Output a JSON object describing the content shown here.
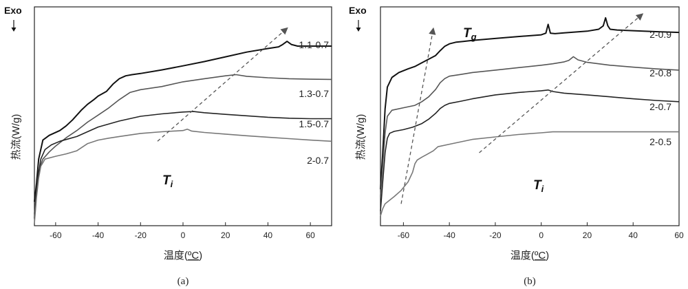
{
  "chart_data": [
    {
      "type": "line",
      "panel": "(a)",
      "exo_label": "Exo",
      "ylabel": "热流(W/g)",
      "xlabel_main": "温度(",
      "xlabel_unit": "ºC",
      "xlabel_close": ")",
      "xlim": [
        -70,
        70
      ],
      "xticks": [
        -60,
        -40,
        -20,
        0,
        20,
        40,
        60
      ],
      "series": [
        {
          "name": "1.1-0.7",
          "color": "#111111",
          "x": [
            -70,
            -69,
            -68,
            -66,
            -63,
            -58,
            -55,
            -52,
            -50,
            -48,
            -45,
            -42,
            -40,
            -36,
            -33,
            -30,
            -27,
            -24,
            -20,
            -10,
            0,
            10,
            20,
            30,
            40,
            45,
            47,
            49,
            51,
            54,
            58,
            62,
            70
          ],
          "y": [
            1.0,
            1.8,
            2.8,
            3.6,
            3.8,
            4.0,
            4.2,
            4.45,
            4.65,
            4.85,
            5.1,
            5.3,
            5.45,
            5.65,
            5.95,
            6.18,
            6.3,
            6.35,
            6.4,
            6.55,
            6.72,
            6.9,
            7.1,
            7.3,
            7.45,
            7.52,
            7.62,
            7.75,
            7.62,
            7.55,
            7.55,
            7.55,
            7.55
          ]
        },
        {
          "name": "1.3-0.7",
          "color": "#555555",
          "x": [
            -70,
            -69,
            -68,
            -66,
            -63,
            -60,
            -55,
            -50,
            -45,
            -40,
            -35,
            -30,
            -25,
            -20,
            -10,
            0,
            10,
            20,
            25,
            30,
            40,
            50,
            60,
            70
          ],
          "y": [
            0.5,
            1.5,
            2.3,
            2.8,
            3.1,
            3.35,
            3.7,
            4.0,
            4.35,
            4.65,
            4.95,
            5.3,
            5.6,
            5.72,
            5.85,
            6.05,
            6.18,
            6.3,
            6.35,
            6.28,
            6.22,
            6.18,
            6.16,
            6.15
          ]
        },
        {
          "name": "1.5-0.7",
          "color": "#222222",
          "x": [
            -70,
            -69,
            -68,
            -67,
            -65,
            -62,
            -58,
            -54,
            -50,
            -45,
            -40,
            -30,
            -20,
            -10,
            0,
            5,
            10,
            20,
            30,
            40,
            50,
            60,
            70
          ],
          "y": [
            0.3,
            1.4,
            2.2,
            2.8,
            3.2,
            3.4,
            3.55,
            3.65,
            3.75,
            3.95,
            4.15,
            4.4,
            4.6,
            4.7,
            4.78,
            4.8,
            4.75,
            4.68,
            4.62,
            4.56,
            4.52,
            4.5,
            4.5
          ]
        },
        {
          "name": "2-0.7",
          "color": "#777777",
          "x": [
            -70,
            -69,
            -68,
            -67,
            -65,
            -60,
            -55,
            -50,
            -45,
            -40,
            -35,
            -30,
            -20,
            -10,
            0,
            2,
            4,
            10,
            20,
            30,
            40,
            50,
            60,
            70
          ],
          "y": [
            0.1,
            1.2,
            2.0,
            2.5,
            2.8,
            2.92,
            3.02,
            3.15,
            3.45,
            3.6,
            3.68,
            3.75,
            3.88,
            3.95,
            4.0,
            4.06,
            3.98,
            3.92,
            3.85,
            3.78,
            3.72,
            3.66,
            3.6,
            3.55
          ]
        }
      ],
      "annotations": [
        {
          "symbol": "T",
          "subscript": "i",
          "from": [
            -12,
            3.55
          ],
          "to": [
            49,
            8.3
          ]
        }
      ]
    },
    {
      "type": "line",
      "panel": "(b)",
      "exo_label": "Exo",
      "ylabel": "热流(W/g)",
      "xlabel_main": "温度(",
      "xlabel_unit": "ºC",
      "xlabel_close": ")",
      "xlim": [
        -70,
        60
      ],
      "xticks": [
        -60,
        -40,
        -20,
        0,
        20,
        40,
        60
      ],
      "series": [
        {
          "name": "2-0.9",
          "color": "#111111",
          "x": [
            -70,
            -69,
            -68,
            -67,
            -65,
            -62,
            -58,
            -55,
            -52,
            -49,
            -46,
            -44,
            -42,
            -40,
            -37,
            -34,
            -30,
            -20,
            -10,
            0,
            2,
            3,
            4,
            6,
            10,
            20,
            25,
            27,
            28,
            29,
            30,
            33,
            40,
            50,
            60
          ],
          "y": [
            1.5,
            3.0,
            4.8,
            5.7,
            6.1,
            6.3,
            6.45,
            6.55,
            6.7,
            6.85,
            7.0,
            7.2,
            7.38,
            7.48,
            7.55,
            7.58,
            7.62,
            7.7,
            7.78,
            7.85,
            7.92,
            8.28,
            7.92,
            7.9,
            7.93,
            8.0,
            8.08,
            8.22,
            8.55,
            8.22,
            8.08,
            8.05,
            8.02,
            7.98,
            7.95
          ]
        },
        {
          "name": "2-0.8",
          "color": "#555555",
          "x": [
            -70,
            -69,
            -68,
            -67,
            -65,
            -60,
            -55,
            -52,
            -49,
            -46,
            -44,
            -42,
            -40,
            -35,
            -30,
            -20,
            -10,
            0,
            5,
            10,
            12,
            14,
            16,
            20,
            30,
            40,
            50,
            60
          ],
          "y": [
            1.2,
            2.5,
            3.8,
            4.5,
            4.75,
            4.85,
            4.95,
            5.1,
            5.3,
            5.6,
            5.88,
            6.05,
            6.15,
            6.22,
            6.3,
            6.4,
            6.5,
            6.6,
            6.66,
            6.74,
            6.8,
            6.95,
            6.82,
            6.72,
            6.6,
            6.52,
            6.45,
            6.4
          ]
        },
        {
          "name": "2-0.7",
          "color": "#222222",
          "x": [
            -70,
            -69,
            -68,
            -67,
            -66,
            -64,
            -60,
            -56,
            -52,
            -49,
            -46,
            -44,
            -42,
            -40,
            -35,
            -30,
            -20,
            -10,
            0,
            3,
            5,
            10,
            20,
            30,
            40,
            50,
            60
          ],
          "y": [
            0.6,
            1.8,
            3.0,
            3.6,
            3.8,
            3.88,
            3.95,
            4.05,
            4.2,
            4.38,
            4.62,
            4.82,
            4.95,
            5.03,
            5.12,
            5.22,
            5.38,
            5.48,
            5.55,
            5.58,
            5.52,
            5.45,
            5.38,
            5.3,
            5.22,
            5.15,
            5.1
          ]
        },
        {
          "name": "2-0.5",
          "color": "#777777",
          "x": [
            -70,
            -69,
            -68,
            -66,
            -64,
            -61,
            -58,
            -56,
            -55,
            -54,
            -52,
            -50,
            -47,
            -45,
            -40,
            -35,
            -30,
            -20,
            -10,
            0,
            5,
            10,
            20,
            30,
            40,
            50,
            60
          ],
          "y": [
            0.4,
            0.7,
            0.9,
            1.05,
            1.2,
            1.45,
            1.8,
            2.2,
            2.55,
            2.7,
            2.82,
            2.92,
            3.08,
            3.25,
            3.35,
            3.45,
            3.55,
            3.65,
            3.75,
            3.82,
            3.86,
            3.86,
            3.86,
            3.86,
            3.86,
            3.86,
            3.86
          ]
        }
      ],
      "annotations": [
        {
          "symbol": "T",
          "subscript": "g",
          "from": [
            -61,
            0.9
          ],
          "to": [
            -47,
            8.1
          ]
        },
        {
          "symbol": "T",
          "subscript": "i",
          "from": [
            -27,
            3.0
          ],
          "to": [
            44,
            8.7
          ]
        }
      ]
    }
  ],
  "captions": [
    "(a)",
    "(b)"
  ]
}
